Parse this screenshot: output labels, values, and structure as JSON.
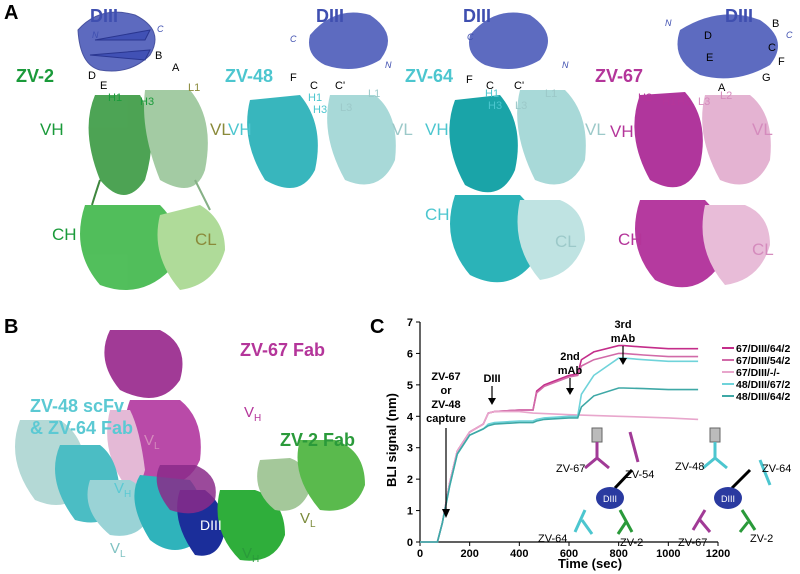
{
  "panel_a": {
    "letter": "A",
    "structures": [
      {
        "name": "ZV-2",
        "domain": "DIII",
        "chain_labels": [
          "VH",
          "VL",
          "CH",
          "CL"
        ],
        "cdr_labels": [
          "H1",
          "H3",
          "L1"
        ],
        "strand_labels": [
          "A",
          "B",
          "D",
          "E"
        ],
        "termini": [
          "N",
          "C"
        ]
      },
      {
        "name": "ZV-48",
        "domain": "DIII",
        "chain_labels": [
          "VH",
          "VL"
        ],
        "cdr_labels": [
          "H1",
          "H3",
          "L3",
          "L1"
        ],
        "strand_labels": [
          "F",
          "C",
          "C'"
        ],
        "termini": [
          "C",
          "N"
        ]
      },
      {
        "name": "ZV-64",
        "domain": "DIII",
        "chain_labels": [
          "VH",
          "VL",
          "CH",
          "CL"
        ],
        "cdr_labels": [
          "H1",
          "H3",
          "L3",
          "L1"
        ],
        "strand_labels": [
          "F",
          "C",
          "C'"
        ],
        "termini": [
          "C",
          "N"
        ]
      },
      {
        "name": "ZV-67",
        "domain": "DIII",
        "chain_labels": [
          "VH",
          "VL",
          "CH",
          "CL"
        ],
        "cdr_labels": [
          "H2",
          "H1",
          "H3",
          "L3",
          "L2"
        ],
        "strand_labels": [
          "B",
          "C",
          "D",
          "E",
          "F",
          "G",
          "A"
        ],
        "termini": [
          "N",
          "C"
        ]
      }
    ],
    "colors": {
      "diii": "#3f4fb0",
      "zv2": "#1a9a3a",
      "zv48": "#4cc6cf",
      "zv64": "#4cc6cf",
      "zv67": "#b4359a"
    }
  },
  "panel_b": {
    "letter": "B",
    "labels": {
      "zv67": "ZV-67 Fab",
      "zv48_line1": "ZV-48 scFv",
      "zv48_line2": "& ZV-64 Fab",
      "zv2": "ZV-2 Fab",
      "diii": "DIII"
    },
    "colors": {
      "zv67": "#b4359a",
      "zv48": "#5bc9d3",
      "zv2": "#2a9a3a",
      "diii": "#2a3aa0"
    }
  },
  "panel_c": {
    "letter": "C",
    "annotations": {
      "capture_lines": [
        "ZV-67",
        "or",
        "ZV-48",
        "capture"
      ],
      "diii": "DIII",
      "second": "2nd",
      "second_sub": "mAb",
      "third": "3rd",
      "third_sub": "mAb"
    },
    "schematic_left": {
      "mabs": [
        "ZV-67",
        "ZV-54",
        "ZV-64",
        "ZV-2"
      ],
      "center": "DIII"
    },
    "schematic_right": {
      "mabs": [
        "ZV-48",
        "ZV-64",
        "ZV-67",
        "ZV-2"
      ],
      "center": "DIII"
    }
  },
  "chart_data": {
    "type": "line",
    "xlabel": "Time (sec)",
    "ylabel": "BLI signal (nm)",
    "xlim": [
      0,
      1200
    ],
    "ylim": [
      0,
      7
    ],
    "xticks": [
      0,
      200,
      400,
      600,
      800,
      1000,
      1200
    ],
    "yticks": [
      0,
      1,
      2,
      3,
      4,
      5,
      6,
      7
    ],
    "legend_position": "right",
    "series": [
      {
        "name": "67/DIII/64/2",
        "color": "#c42d8a",
        "x": [
          0,
          70,
          90,
          120,
          150,
          200,
          255,
          275,
          300,
          400,
          455,
          470,
          500,
          600,
          635,
          650,
          700,
          800,
          820,
          900,
          1000,
          1120
        ],
        "y": [
          0,
          0,
          0.6,
          1.9,
          2.9,
          3.5,
          3.75,
          4.1,
          4.15,
          4.2,
          4.2,
          4.8,
          5.0,
          5.3,
          5.35,
          5.8,
          6.05,
          6.25,
          6.25,
          6.2,
          6.15,
          6.15
        ]
      },
      {
        "name": "67/DIII/54/2",
        "color": "#d16aa8",
        "x": [
          0,
          70,
          90,
          120,
          150,
          200,
          255,
          275,
          300,
          400,
          455,
          470,
          500,
          600,
          635,
          650,
          700,
          800,
          820,
          900,
          1000,
          1120
        ],
        "y": [
          0,
          0,
          0.6,
          1.9,
          2.9,
          3.5,
          3.75,
          4.1,
          4.15,
          4.2,
          4.2,
          4.75,
          4.95,
          5.25,
          5.3,
          5.6,
          5.8,
          6.0,
          6.0,
          5.95,
          5.9,
          5.9
        ]
      },
      {
        "name": "67/DIII/-/-",
        "color": "#e8a6cc",
        "x": [
          0,
          70,
          90,
          120,
          150,
          200,
          255,
          275,
          300,
          400,
          455,
          600,
          800,
          1000,
          1120
        ],
        "y": [
          0,
          0,
          0.6,
          1.9,
          2.9,
          3.5,
          3.75,
          4.1,
          4.15,
          4.15,
          4.1,
          4.05,
          4.0,
          3.95,
          3.9
        ]
      },
      {
        "name": "48/DIII/67/2",
        "color": "#6fd3da",
        "x": [
          0,
          70,
          90,
          120,
          150,
          200,
          255,
          275,
          300,
          400,
          455,
          470,
          500,
          600,
          635,
          650,
          700,
          800,
          820,
          900,
          1000,
          1120
        ],
        "y": [
          0,
          0,
          0.6,
          1.8,
          2.8,
          3.4,
          3.6,
          3.75,
          3.8,
          3.85,
          3.85,
          3.9,
          3.95,
          4.0,
          4.0,
          4.7,
          5.3,
          5.85,
          5.85,
          5.8,
          5.75,
          5.75
        ]
      },
      {
        "name": "48/DIII/64/2",
        "color": "#3ea8a6",
        "x": [
          0,
          70,
          90,
          120,
          150,
          200,
          255,
          275,
          300,
          400,
          455,
          470,
          500,
          600,
          635,
          650,
          700,
          800,
          820,
          900,
          1000,
          1120
        ],
        "y": [
          0,
          0,
          0.6,
          1.8,
          2.8,
          3.4,
          3.6,
          3.7,
          3.75,
          3.8,
          3.8,
          3.85,
          3.9,
          3.95,
          3.95,
          4.3,
          4.65,
          4.9,
          4.9,
          4.88,
          4.85,
          4.85
        ]
      }
    ]
  }
}
